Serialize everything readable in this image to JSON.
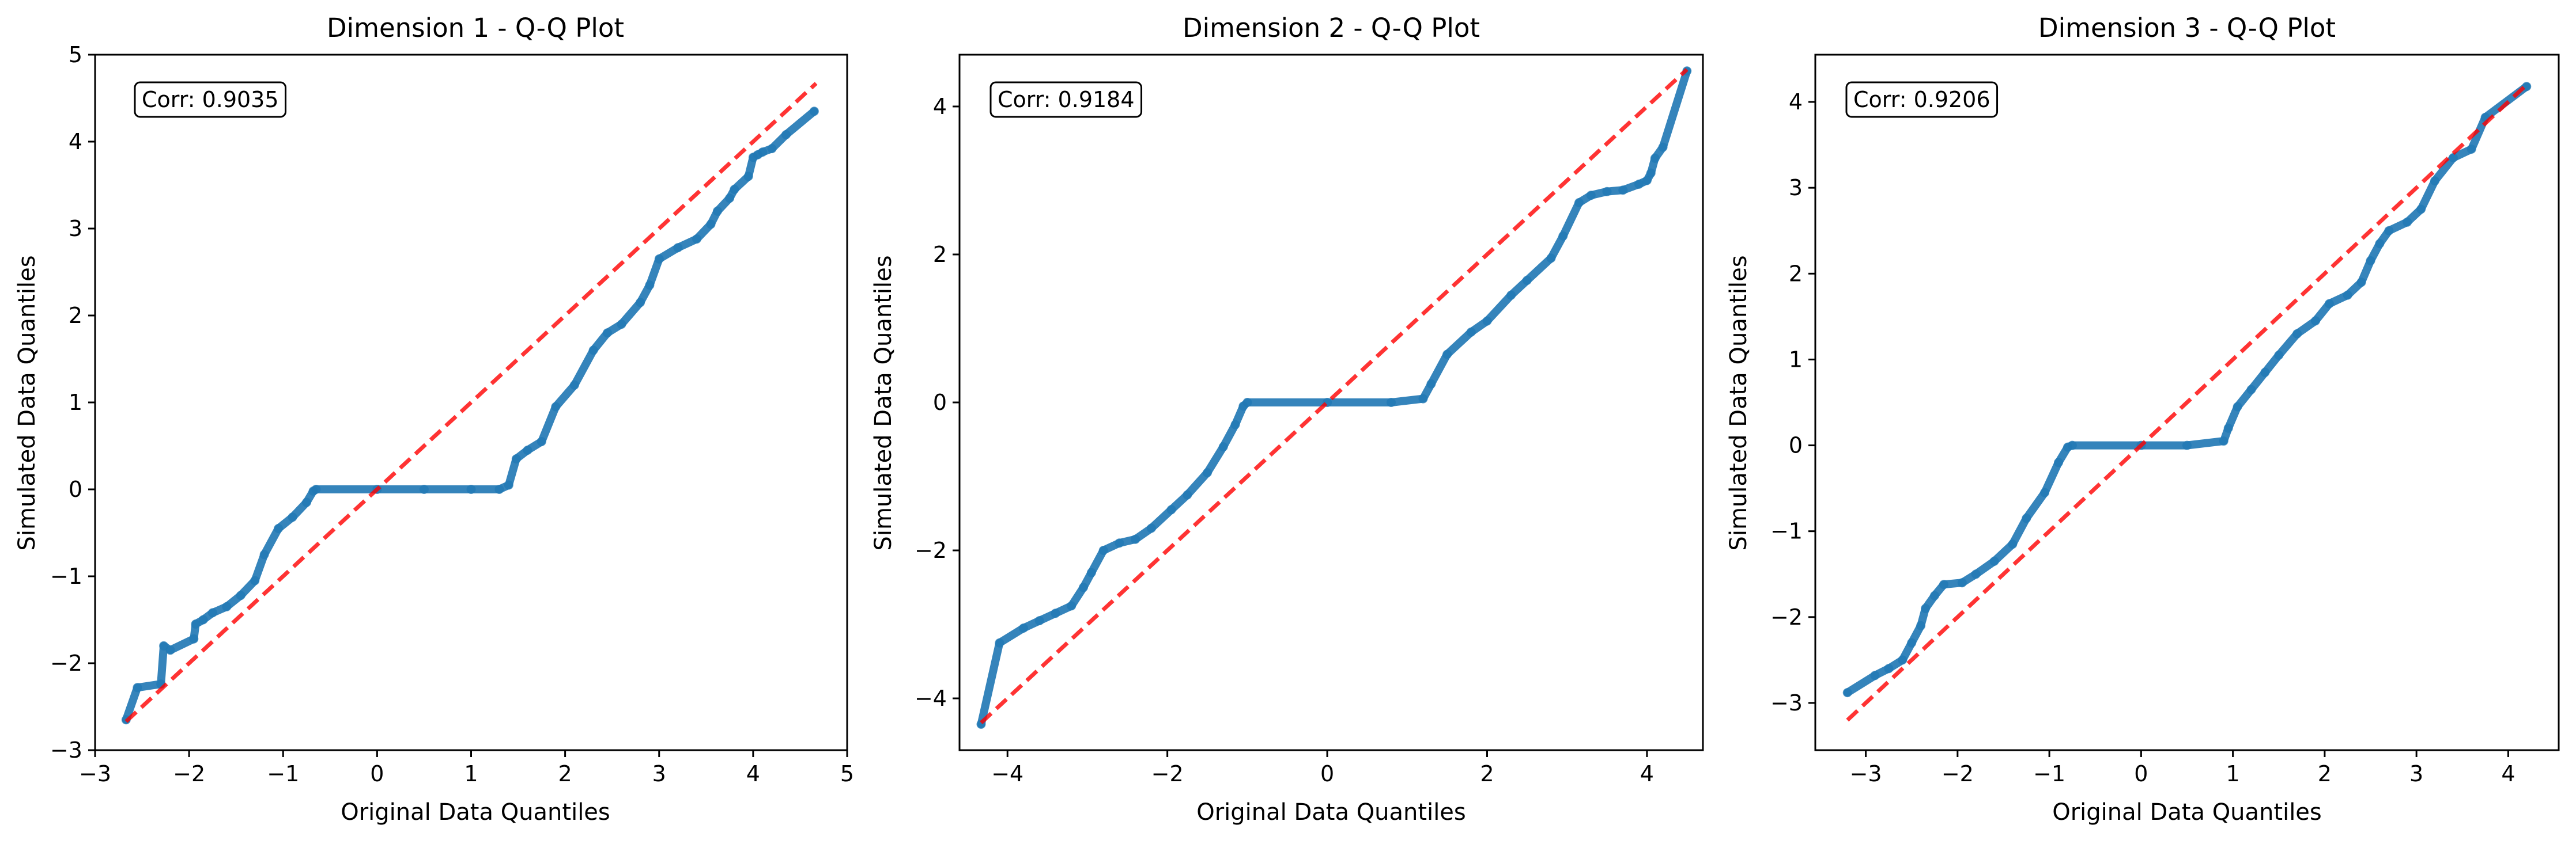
{
  "style": {
    "point_color": "#1f77b4",
    "line_color": "#ff0000",
    "background": "#ffffff"
  },
  "chart_data": [
    {
      "type": "scatter",
      "title": "Dimension 1 - Q-Q Plot",
      "xlabel": "Original Data Quantiles",
      "ylabel": "Simulated Data Quantiles",
      "annotation": "Corr: 0.9035",
      "xlim": [
        -3.0,
        5.0
      ],
      "ylim": [
        -3.0,
        5.0
      ],
      "xticks": [
        -3,
        -2,
        -1,
        0,
        1,
        2,
        3,
        4,
        5
      ],
      "yticks": [
        -3,
        -2,
        -1,
        0,
        1,
        2,
        3,
        4,
        5
      ],
      "grid": false,
      "reference_line": {
        "from": [
          -2.67,
          -2.67
        ],
        "to": [
          4.67,
          4.67
        ],
        "style": "dashed"
      },
      "points": [
        [
          -2.67,
          -2.65
        ],
        [
          -2.55,
          -2.28
        ],
        [
          -2.3,
          -2.24
        ],
        [
          -2.27,
          -1.8
        ],
        [
          -2.2,
          -1.85
        ],
        [
          -1.95,
          -1.72
        ],
        [
          -1.93,
          -1.55
        ],
        [
          -1.85,
          -1.5
        ],
        [
          -1.75,
          -1.42
        ],
        [
          -1.6,
          -1.35
        ],
        [
          -1.45,
          -1.22
        ],
        [
          -1.3,
          -1.05
        ],
        [
          -1.2,
          -0.75
        ],
        [
          -1.05,
          -0.45
        ],
        [
          -0.9,
          -0.32
        ],
        [
          -0.75,
          -0.15
        ],
        [
          -0.68,
          -0.02
        ],
        [
          -0.65,
          0.0
        ],
        [
          0.0,
          0.0
        ],
        [
          0.5,
          0.0
        ],
        [
          1.0,
          0.0
        ],
        [
          1.3,
          0.0
        ],
        [
          1.4,
          0.05
        ],
        [
          1.48,
          0.35
        ],
        [
          1.6,
          0.45
        ],
        [
          1.75,
          0.55
        ],
        [
          1.9,
          0.95
        ],
        [
          2.1,
          1.2
        ],
        [
          2.3,
          1.6
        ],
        [
          2.45,
          1.8
        ],
        [
          2.6,
          1.9
        ],
        [
          2.8,
          2.15
        ],
        [
          2.9,
          2.35
        ],
        [
          3.0,
          2.65
        ],
        [
          3.2,
          2.78
        ],
        [
          3.4,
          2.88
        ],
        [
          3.55,
          3.05
        ],
        [
          3.62,
          3.2
        ],
        [
          3.75,
          3.35
        ],
        [
          3.8,
          3.45
        ],
        [
          3.95,
          3.6
        ],
        [
          4.0,
          3.82
        ],
        [
          4.05,
          3.85
        ],
        [
          4.1,
          3.88
        ],
        [
          4.2,
          3.92
        ],
        [
          4.35,
          4.08
        ],
        [
          4.65,
          4.35
        ]
      ]
    },
    {
      "type": "scatter",
      "title": "Dimension 2 - Q-Q Plot",
      "xlabel": "Original Data Quantiles",
      "ylabel": "Simulated Data Quantiles",
      "annotation": "Corr: 0.9184",
      "xlim": [
        -4.6,
        4.7
      ],
      "ylim": [
        -4.7,
        4.7
      ],
      "xticks": [
        -4,
        -2,
        0,
        2,
        4
      ],
      "yticks": [
        -4,
        -2,
        0,
        2,
        4
      ],
      "grid": false,
      "reference_line": {
        "from": [
          -4.33,
          -4.33
        ],
        "to": [
          4.5,
          4.5
        ],
        "style": "dashed"
      },
      "points": [
        [
          -4.33,
          -4.35
        ],
        [
          -4.1,
          -3.25
        ],
        [
          -3.8,
          -3.05
        ],
        [
          -3.6,
          -2.95
        ],
        [
          -3.4,
          -2.85
        ],
        [
          -3.2,
          -2.75
        ],
        [
          -3.05,
          -2.5
        ],
        [
          -2.95,
          -2.3
        ],
        [
          -2.8,
          -2.0
        ],
        [
          -2.6,
          -1.9
        ],
        [
          -2.4,
          -1.85
        ],
        [
          -2.2,
          -1.7
        ],
        [
          -1.95,
          -1.45
        ],
        [
          -1.75,
          -1.25
        ],
        [
          -1.5,
          -0.95
        ],
        [
          -1.3,
          -0.6
        ],
        [
          -1.15,
          -0.3
        ],
        [
          -1.05,
          -0.05
        ],
        [
          -1.0,
          0.0
        ],
        [
          0.0,
          0.0
        ],
        [
          0.8,
          0.0
        ],
        [
          1.2,
          0.05
        ],
        [
          1.3,
          0.25
        ],
        [
          1.5,
          0.65
        ],
        [
          1.8,
          0.95
        ],
        [
          2.0,
          1.1
        ],
        [
          2.3,
          1.45
        ],
        [
          2.5,
          1.65
        ],
        [
          2.8,
          1.95
        ],
        [
          2.95,
          2.25
        ],
        [
          3.15,
          2.7
        ],
        [
          3.3,
          2.8
        ],
        [
          3.5,
          2.85
        ],
        [
          3.7,
          2.87
        ],
        [
          3.9,
          2.95
        ],
        [
          4.0,
          3.0
        ],
        [
          4.05,
          3.1
        ],
        [
          4.1,
          3.3
        ],
        [
          4.2,
          3.45
        ],
        [
          4.5,
          4.48
        ]
      ]
    },
    {
      "type": "scatter",
      "title": "Dimension 3 - Q-Q Plot",
      "xlabel": "Original Data Quantiles",
      "ylabel": "Simulated Data Quantiles",
      "annotation": "Corr: 0.9206",
      "xlim": [
        -3.55,
        4.55
      ],
      "ylim": [
        -3.55,
        4.55
      ],
      "xticks": [
        -3,
        -2,
        -1,
        0,
        1,
        2,
        3,
        4
      ],
      "yticks": [
        -3,
        -2,
        -1,
        0,
        1,
        2,
        3,
        4
      ],
      "grid": false,
      "reference_line": {
        "from": [
          -3.2,
          -3.2
        ],
        "to": [
          4.2,
          4.2
        ],
        "style": "dashed"
      },
      "points": [
        [
          -3.2,
          -2.88
        ],
        [
          -2.9,
          -2.68
        ],
        [
          -2.75,
          -2.6
        ],
        [
          -2.6,
          -2.5
        ],
        [
          -2.5,
          -2.3
        ],
        [
          -2.4,
          -2.1
        ],
        [
          -2.35,
          -1.9
        ],
        [
          -2.25,
          -1.75
        ],
        [
          -2.15,
          -1.62
        ],
        [
          -1.95,
          -1.6
        ],
        [
          -1.8,
          -1.5
        ],
        [
          -1.6,
          -1.35
        ],
        [
          -1.4,
          -1.15
        ],
        [
          -1.25,
          -0.85
        ],
        [
          -1.05,
          -0.55
        ],
        [
          -0.9,
          -0.2
        ],
        [
          -0.8,
          -0.02
        ],
        [
          -0.75,
          0.0
        ],
        [
          0.0,
          0.0
        ],
        [
          0.5,
          0.0
        ],
        [
          0.9,
          0.05
        ],
        [
          0.95,
          0.2
        ],
        [
          1.05,
          0.45
        ],
        [
          1.2,
          0.65
        ],
        [
          1.35,
          0.85
        ],
        [
          1.5,
          1.05
        ],
        [
          1.7,
          1.3
        ],
        [
          1.9,
          1.45
        ],
        [
          2.05,
          1.65
        ],
        [
          2.25,
          1.75
        ],
        [
          2.4,
          1.9
        ],
        [
          2.5,
          2.15
        ],
        [
          2.6,
          2.35
        ],
        [
          2.7,
          2.5
        ],
        [
          2.9,
          2.6
        ],
        [
          3.05,
          2.75
        ],
        [
          3.2,
          3.08
        ],
        [
          3.4,
          3.35
        ],
        [
          3.6,
          3.45
        ],
        [
          3.75,
          3.82
        ],
        [
          4.2,
          4.18
        ]
      ]
    }
  ]
}
